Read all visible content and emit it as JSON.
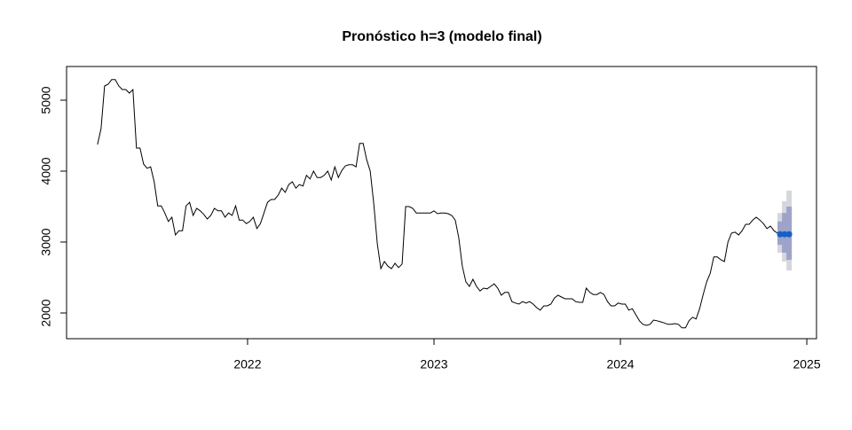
{
  "chart_data": {
    "type": "line",
    "title": "Pronóstico h=3 (modelo final)",
    "x": [
      2021.195,
      2021.214,
      2021.233,
      2021.252,
      2021.271,
      2021.29,
      2021.309,
      2021.328,
      2021.347,
      2021.366,
      2021.385,
      2021.404,
      2021.423,
      2021.442,
      2021.461,
      2021.48,
      2021.499,
      2021.518,
      2021.537,
      2021.556,
      2021.575,
      2021.594,
      2021.613,
      2021.632,
      2021.651,
      2021.67,
      2021.689,
      2021.708,
      2021.727,
      2021.746,
      2021.765,
      2021.784,
      2021.803,
      2021.822,
      2021.841,
      2021.86,
      2021.879,
      2021.898,
      2021.917,
      2021.936,
      2021.955,
      2021.974,
      2021.993,
      2022.012,
      2022.031,
      2022.05,
      2022.069,
      2022.088,
      2022.107,
      2022.126,
      2022.145,
      2022.164,
      2022.183,
      2022.202,
      2022.221,
      2022.24,
      2022.259,
      2022.278,
      2022.297,
      2022.316,
      2022.335,
      2022.354,
      2022.373,
      2022.392,
      2022.411,
      2022.43,
      2022.449,
      2022.468,
      2022.487,
      2022.506,
      2022.525,
      2022.544,
      2022.563,
      2022.582,
      2022.601,
      2022.62,
      2022.639,
      2022.658,
      2022.677,
      2022.696,
      2022.715,
      2022.734,
      2022.753,
      2022.772,
      2022.791,
      2022.81,
      2022.829,
      2022.848,
      2022.867,
      2022.886,
      2022.905,
      2022.924,
      2022.943,
      2022.962,
      2022.981,
      2023.0,
      2023.019,
      2023.038,
      2023.057,
      2023.076,
      2023.095,
      2023.114,
      2023.133,
      2023.152,
      2023.171,
      2023.19,
      2023.209,
      2023.228,
      2023.247,
      2023.266,
      2023.285,
      2023.304,
      2023.323,
      2023.342,
      2023.361,
      2023.38,
      2023.399,
      2023.418,
      2023.437,
      2023.456,
      2023.475,
      2023.494,
      2023.513,
      2023.532,
      2023.551,
      2023.57,
      2023.589,
      2023.608,
      2023.627,
      2023.646,
      2023.665,
      2023.684,
      2023.703,
      2023.722,
      2023.741,
      2023.76,
      2023.779,
      2023.798,
      2023.817,
      2023.836,
      2023.855,
      2023.874,
      2023.893,
      2023.912,
      2023.931,
      2023.95,
      2023.969,
      2023.988,
      2024.007,
      2024.026,
      2024.045,
      2024.064,
      2024.083,
      2024.102,
      2024.121,
      2024.14,
      2024.159,
      2024.178,
      2024.197,
      2024.216,
      2024.235,
      2024.254,
      2024.273,
      2024.292,
      2024.311,
      2024.33,
      2024.349,
      2024.368,
      2024.387,
      2024.406,
      2024.425,
      2024.444,
      2024.463,
      2024.482,
      2024.501,
      2024.52,
      2024.539,
      2024.558,
      2024.577,
      2024.596,
      2024.615,
      2024.634,
      2024.653,
      2024.672,
      2024.691,
      2024.71,
      2024.729,
      2024.748,
      2024.767,
      2024.786,
      2024.805,
      2024.824,
      2024.843
    ],
    "values": [
      4375,
      4600,
      5200,
      5225,
      5290,
      5290,
      5200,
      5150,
      5150,
      5100,
      5150,
      4325,
      4325,
      4100,
      4040,
      4060,
      3850,
      3510,
      3510,
      3410,
      3290,
      3350,
      3100,
      3160,
      3160,
      3510,
      3560,
      3375,
      3475,
      3440,
      3390,
      3325,
      3375,
      3475,
      3440,
      3440,
      3350,
      3410,
      3375,
      3510,
      3310,
      3310,
      3260,
      3290,
      3350,
      3190,
      3260,
      3410,
      3560,
      3600,
      3600,
      3660,
      3760,
      3700,
      3810,
      3850,
      3760,
      3810,
      3790,
      3940,
      3890,
      4000,
      3910,
      3910,
      3940,
      4000,
      3875,
      4060,
      3910,
      4010,
      4075,
      4090,
      4090,
      4060,
      4390,
      4390,
      4160,
      4000,
      3540,
      2975,
      2625,
      2725,
      2660,
      2625,
      2700,
      2640,
      2690,
      3500,
      3500,
      3475,
      3410,
      3410,
      3410,
      3410,
      3410,
      3440,
      3400,
      3410,
      3410,
      3400,
      3375,
      3310,
      3060,
      2660,
      2440,
      2375,
      2475,
      2375,
      2310,
      2350,
      2340,
      2375,
      2410,
      2350,
      2250,
      2290,
      2290,
      2160,
      2140,
      2125,
      2160,
      2140,
      2160,
      2125,
      2075,
      2040,
      2100,
      2100,
      2125,
      2210,
      2250,
      2225,
      2200,
      2200,
      2200,
      2160,
      2150,
      2150,
      2350,
      2290,
      2260,
      2260,
      2290,
      2260,
      2160,
      2100,
      2100,
      2140,
      2125,
      2125,
      2040,
      2060,
      1975,
      1890,
      1840,
      1825,
      1840,
      1900,
      1890,
      1875,
      1860,
      1840,
      1840,
      1850,
      1840,
      1790,
      1790,
      1890,
      1940,
      1915,
      2060,
      2260,
      2440,
      2560,
      2790,
      2790,
      2750,
      2725,
      3000,
      3125,
      3140,
      3100,
      3160,
      3250,
      3250,
      3310,
      3350,
      3310,
      3260,
      3190,
      3225,
      3160,
      3125
    ],
    "color": "#000000",
    "forecast": {
      "x": [
        2024.857,
        2024.881,
        2024.905
      ],
      "mean": [
        3110,
        3110,
        3110
      ],
      "lo80": [
        2960,
        2850,
        2750
      ],
      "hi80": [
        3290,
        3410,
        3500
      ],
      "lo95": [
        2850,
        2725,
        2600
      ],
      "hi95": [
        3410,
        3575,
        3725
      ],
      "color": "#1560c6",
      "color80": "#9ea3c9",
      "color95": "#d6d6de"
    },
    "xlim": [
      2021.029,
      2025.052
    ],
    "ylim": [
      1637.5,
      5475
    ],
    "xticks": [
      2022,
      2023,
      2024,
      2025
    ],
    "yticks": [
      2000,
      3000,
      4000,
      5000
    ]
  }
}
